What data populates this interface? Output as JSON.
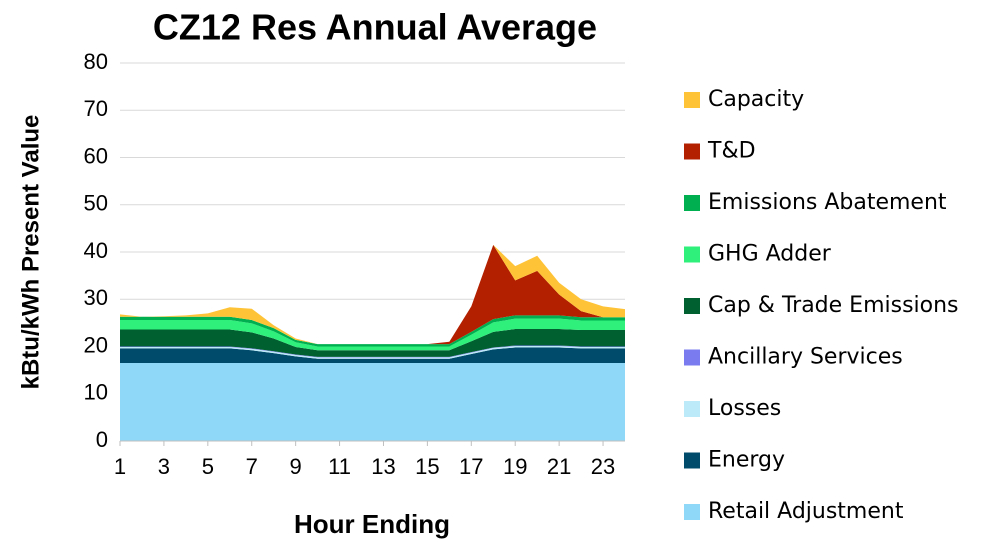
{
  "chart_data": {
    "type": "stacked_area",
    "title": "CZ12 Res Annual Average",
    "x_label": "Hour Ending",
    "y_label": "kBtu/kWh Present Value",
    "x": [
      1,
      2,
      3,
      4,
      5,
      6,
      7,
      8,
      9,
      10,
      11,
      12,
      13,
      14,
      15,
      16,
      17,
      18,
      19,
      20,
      21,
      22,
      23,
      24
    ],
    "xlim": [
      1,
      24
    ],
    "xticks": [
      1,
      3,
      5,
      7,
      9,
      11,
      13,
      15,
      17,
      19,
      21,
      23
    ],
    "ylim": [
      0,
      80
    ],
    "yticks": [
      0,
      10,
      20,
      30,
      40,
      50,
      60,
      70,
      80
    ],
    "grid": true,
    "legend": "right",
    "series": [
      {
        "name": "Retail Adjustment",
        "color": "#8fd8f7",
        "values": [
          16.5,
          16.5,
          16.5,
          16.5,
          16.5,
          16.5,
          16.5,
          16.5,
          16.5,
          16.5,
          16.5,
          16.5,
          16.5,
          16.5,
          16.5,
          16.5,
          16.5,
          16.5,
          16.5,
          16.5,
          16.5,
          16.5,
          16.5,
          16.5
        ]
      },
      {
        "name": "Energy",
        "color": "#004b6b",
        "values": [
          3.1,
          3.1,
          3.1,
          3.1,
          3.1,
          3.1,
          2.7,
          2.1,
          1.4,
          0.9,
          0.9,
          0.9,
          0.9,
          0.9,
          0.9,
          0.9,
          1.9,
          2.9,
          3.3,
          3.3,
          3.3,
          3.1,
          3.1,
          3.1
        ]
      },
      {
        "name": "Losses",
        "color": "#bdeaf9",
        "values": [
          0.3,
          0.3,
          0.3,
          0.3,
          0.3,
          0.3,
          0.3,
          0.3,
          0.3,
          0.3,
          0.3,
          0.3,
          0.3,
          0.3,
          0.3,
          0.3,
          0.3,
          0.3,
          0.3,
          0.3,
          0.3,
          0.3,
          0.3,
          0.3
        ]
      },
      {
        "name": "Ancillary Services",
        "color": "#7b7bf0",
        "values": [
          0.1,
          0.1,
          0.1,
          0.1,
          0.1,
          0.1,
          0.1,
          0.1,
          0.1,
          0.1,
          0.1,
          0.1,
          0.1,
          0.1,
          0.1,
          0.1,
          0.1,
          0.1,
          0.1,
          0.1,
          0.1,
          0.1,
          0.1,
          0.1
        ]
      },
      {
        "name": "Cap & Trade Emissions",
        "color": "#006030",
        "values": [
          3.6,
          3.6,
          3.6,
          3.6,
          3.6,
          3.6,
          3.4,
          2.7,
          1.6,
          1.4,
          1.4,
          1.4,
          1.4,
          1.4,
          1.4,
          1.4,
          2.3,
          3.3,
          3.5,
          3.5,
          3.5,
          3.5,
          3.5,
          3.5
        ]
      },
      {
        "name": "GHG Adder",
        "color": "#2ef07a",
        "values": [
          2.0,
          2.0,
          2.0,
          2.0,
          2.0,
          2.0,
          1.9,
          1.5,
          1.0,
          0.8,
          0.8,
          0.8,
          0.8,
          0.8,
          0.8,
          0.8,
          1.4,
          2.0,
          2.2,
          2.2,
          2.2,
          2.0,
          2.0,
          2.0
        ]
      },
      {
        "name": "Emissions Abatement",
        "color": "#00b050",
        "values": [
          0.7,
          0.7,
          0.7,
          0.7,
          0.7,
          0.7,
          0.7,
          0.7,
          0.5,
          0.5,
          0.5,
          0.5,
          0.5,
          0.5,
          0.5,
          0.5,
          0.6,
          0.7,
          0.7,
          0.7,
          0.7,
          0.7,
          0.7,
          0.7
        ]
      },
      {
        "name": "T&D",
        "color": "#b22000",
        "values": [
          0,
          0,
          0,
          0,
          0,
          0,
          0,
          0,
          0,
          0,
          0,
          0,
          0,
          0,
          0,
          0.5,
          5.4,
          15.7,
          7.4,
          9.4,
          4.4,
          1.3,
          0,
          0
        ]
      },
      {
        "name": "Capacity",
        "color": "#ffc337",
        "values": [
          0.5,
          0,
          0.1,
          0.3,
          0.7,
          2.0,
          2.4,
          0.6,
          0.3,
          0,
          0,
          0,
          0,
          0,
          0,
          0,
          0,
          0,
          3.0,
          3.2,
          2.5,
          2.5,
          2.3,
          1.7
        ]
      }
    ]
  }
}
